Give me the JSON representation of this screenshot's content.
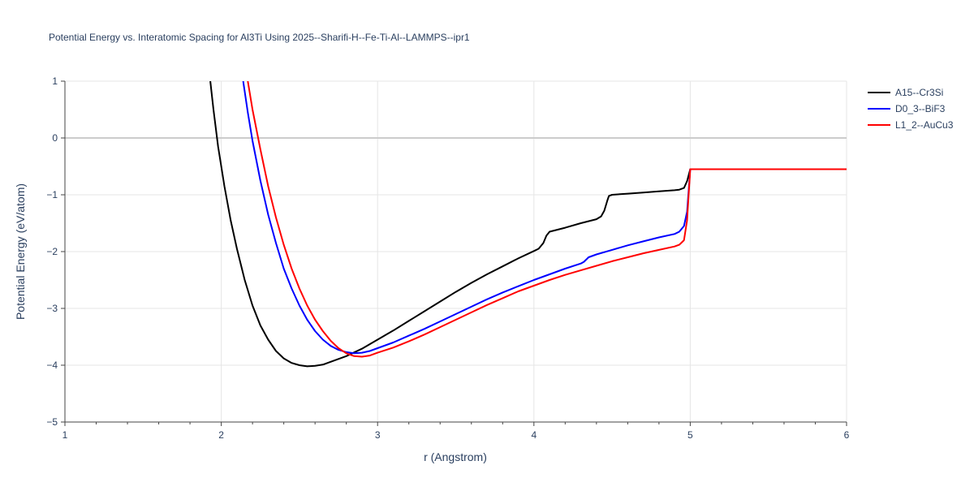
{
  "chart_data": {
    "type": "line",
    "title": "Potential Energy vs. Interatomic Spacing for Al3Ti Using 2025--Sharifi-H--Fe-Ti-Al--LAMMPS--ipr1",
    "xlabel": "r (Angstrom)",
    "ylabel": "Potential Energy (eV/atom)",
    "xlim": [
      1,
      6
    ],
    "ylim": [
      -5,
      1
    ],
    "x_ticks": [
      1,
      2,
      3,
      4,
      5,
      6
    ],
    "x_tick_labels": [
      "1",
      "2",
      "3",
      "4",
      "5",
      "6"
    ],
    "y_ticks": [
      -5,
      -4,
      -3,
      -2,
      -1,
      0,
      1
    ],
    "y_tick_labels": [
      "−5",
      "−4",
      "−3",
      "−2",
      "−1",
      "0",
      "1"
    ],
    "grid": true,
    "legend_position": "top-right",
    "series": [
      {
        "name": "A15--Cr3Si",
        "color": "#000000",
        "points": [
          [
            1.93,
            1.0
          ],
          [
            1.95,
            0.5
          ],
          [
            1.98,
            -0.15
          ],
          [
            2.02,
            -0.85
          ],
          [
            2.06,
            -1.45
          ],
          [
            2.1,
            -1.95
          ],
          [
            2.15,
            -2.5
          ],
          [
            2.2,
            -2.95
          ],
          [
            2.25,
            -3.3
          ],
          [
            2.3,
            -3.55
          ],
          [
            2.35,
            -3.75
          ],
          [
            2.4,
            -3.88
          ],
          [
            2.45,
            -3.96
          ],
          [
            2.5,
            -4.0
          ],
          [
            2.55,
            -4.02
          ],
          [
            2.6,
            -4.01
          ],
          [
            2.65,
            -3.99
          ],
          [
            2.7,
            -3.94
          ],
          [
            2.8,
            -3.84
          ],
          [
            2.9,
            -3.71
          ],
          [
            3.0,
            -3.55
          ],
          [
            3.1,
            -3.39
          ],
          [
            3.2,
            -3.22
          ],
          [
            3.3,
            -3.05
          ],
          [
            3.4,
            -2.88
          ],
          [
            3.5,
            -2.71
          ],
          [
            3.6,
            -2.55
          ],
          [
            3.7,
            -2.4
          ],
          [
            3.8,
            -2.26
          ],
          [
            3.9,
            -2.12
          ],
          [
            4.0,
            -1.99
          ],
          [
            4.03,
            -1.95
          ],
          [
            4.06,
            -1.85
          ],
          [
            4.08,
            -1.72
          ],
          [
            4.1,
            -1.65
          ],
          [
            4.2,
            -1.58
          ],
          [
            4.3,
            -1.5
          ],
          [
            4.4,
            -1.43
          ],
          [
            4.43,
            -1.38
          ],
          [
            4.45,
            -1.28
          ],
          [
            4.47,
            -1.1
          ],
          [
            4.48,
            -1.02
          ],
          [
            4.5,
            -1.0
          ],
          [
            4.6,
            -0.98
          ],
          [
            4.7,
            -0.96
          ],
          [
            4.8,
            -0.94
          ],
          [
            4.9,
            -0.92
          ],
          [
            4.93,
            -0.91
          ],
          [
            4.96,
            -0.88
          ],
          [
            4.98,
            -0.76
          ],
          [
            5.0,
            -0.55
          ],
          [
            6.0,
            -0.55
          ]
        ]
      },
      {
        "name": "D0_3--BiF3",
        "color": "#0000ff",
        "points": [
          [
            2.14,
            1.0
          ],
          [
            2.17,
            0.45
          ],
          [
            2.2,
            -0.05
          ],
          [
            2.25,
            -0.75
          ],
          [
            2.3,
            -1.35
          ],
          [
            2.35,
            -1.85
          ],
          [
            2.4,
            -2.3
          ],
          [
            2.45,
            -2.65
          ],
          [
            2.5,
            -2.95
          ],
          [
            2.55,
            -3.2
          ],
          [
            2.6,
            -3.4
          ],
          [
            2.65,
            -3.55
          ],
          [
            2.7,
            -3.66
          ],
          [
            2.75,
            -3.73
          ],
          [
            2.8,
            -3.77
          ],
          [
            2.85,
            -3.79
          ],
          [
            2.9,
            -3.78
          ],
          [
            2.95,
            -3.75
          ],
          [
            3.0,
            -3.7
          ],
          [
            3.1,
            -3.6
          ],
          [
            3.2,
            -3.48
          ],
          [
            3.3,
            -3.36
          ],
          [
            3.4,
            -3.23
          ],
          [
            3.5,
            -3.1
          ],
          [
            3.6,
            -2.97
          ],
          [
            3.7,
            -2.84
          ],
          [
            3.8,
            -2.72
          ],
          [
            3.9,
            -2.61
          ],
          [
            4.0,
            -2.5
          ],
          [
            4.1,
            -2.4
          ],
          [
            4.2,
            -2.3
          ],
          [
            4.3,
            -2.21
          ],
          [
            4.32,
            -2.18
          ],
          [
            4.35,
            -2.1
          ],
          [
            4.4,
            -2.05
          ],
          [
            4.5,
            -1.97
          ],
          [
            4.6,
            -1.89
          ],
          [
            4.7,
            -1.82
          ],
          [
            4.8,
            -1.75
          ],
          [
            4.9,
            -1.69
          ],
          [
            4.93,
            -1.65
          ],
          [
            4.96,
            -1.55
          ],
          [
            4.98,
            -1.3
          ],
          [
            5.0,
            -0.55
          ],
          [
            6.0,
            -0.55
          ]
        ]
      },
      {
        "name": "L1_2--AuCu3",
        "color": "#ff0000",
        "points": [
          [
            2.17,
            1.0
          ],
          [
            2.2,
            0.5
          ],
          [
            2.25,
            -0.2
          ],
          [
            2.3,
            -0.85
          ],
          [
            2.35,
            -1.4
          ],
          [
            2.4,
            -1.88
          ],
          [
            2.45,
            -2.3
          ],
          [
            2.5,
            -2.65
          ],
          [
            2.55,
            -2.95
          ],
          [
            2.6,
            -3.2
          ],
          [
            2.65,
            -3.4
          ],
          [
            2.7,
            -3.57
          ],
          [
            2.75,
            -3.7
          ],
          [
            2.8,
            -3.79
          ],
          [
            2.85,
            -3.84
          ],
          [
            2.9,
            -3.85
          ],
          [
            2.95,
            -3.83
          ],
          [
            3.0,
            -3.78
          ],
          [
            3.1,
            -3.69
          ],
          [
            3.2,
            -3.58
          ],
          [
            3.3,
            -3.46
          ],
          [
            3.4,
            -3.33
          ],
          [
            3.5,
            -3.2
          ],
          [
            3.6,
            -3.07
          ],
          [
            3.7,
            -2.94
          ],
          [
            3.8,
            -2.82
          ],
          [
            3.9,
            -2.7
          ],
          [
            4.0,
            -2.6
          ],
          [
            4.1,
            -2.5
          ],
          [
            4.2,
            -2.41
          ],
          [
            4.3,
            -2.33
          ],
          [
            4.4,
            -2.25
          ],
          [
            4.5,
            -2.17
          ],
          [
            4.6,
            -2.1
          ],
          [
            4.7,
            -2.03
          ],
          [
            4.8,
            -1.97
          ],
          [
            4.9,
            -1.91
          ],
          [
            4.93,
            -1.88
          ],
          [
            4.96,
            -1.8
          ],
          [
            4.98,
            -1.45
          ],
          [
            5.0,
            -0.55
          ],
          [
            6.0,
            -0.55
          ]
        ]
      }
    ]
  }
}
